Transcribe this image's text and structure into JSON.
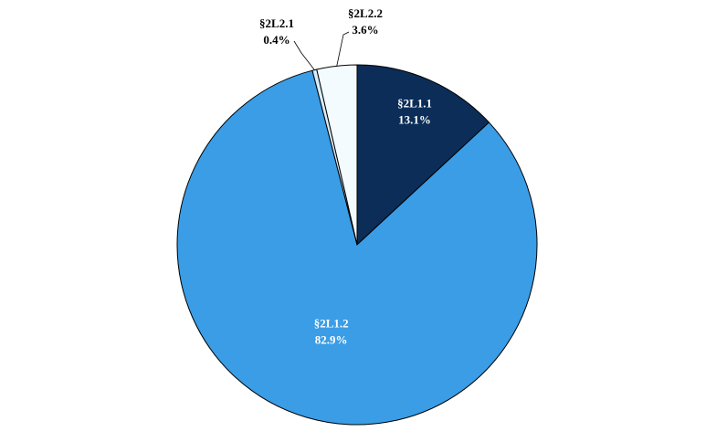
{
  "chart_data": {
    "type": "pie",
    "categories": [
      "§2L1.1",
      "§2L1.2",
      "§2L2.1",
      "§2L2.2"
    ],
    "values": [
      13.1,
      82.9,
      0.4,
      3.6
    ],
    "value_labels": [
      "13.1%",
      "82.9%",
      "0.4%",
      "3.6%"
    ],
    "colors": [
      "#0b2d57",
      "#3a9de6",
      "#d6ecfb",
      "#f3fbff"
    ]
  }
}
